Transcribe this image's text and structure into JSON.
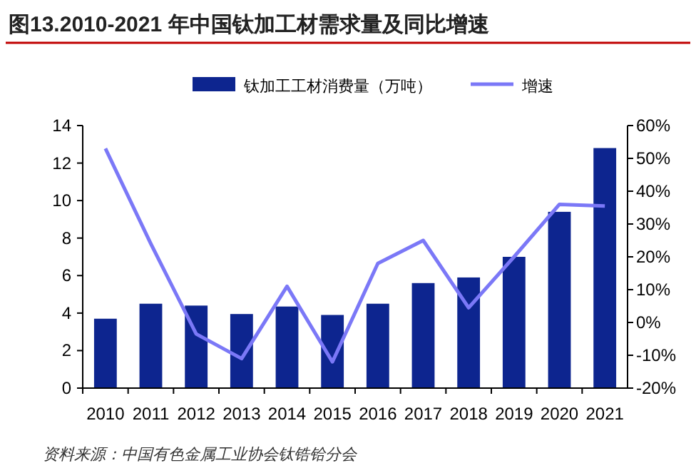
{
  "chart_data": {
    "type": "bar",
    "title": "图13.2010-2021 年中国钛加工材需求量及同比增速",
    "categories": [
      "2010",
      "2011",
      "2012",
      "2013",
      "2014",
      "2015",
      "2016",
      "2017",
      "2018",
      "2019",
      "2020",
      "2021"
    ],
    "series": [
      {
        "name": "钛加工工材消费量（万吨）",
        "color": "#0d258f",
        "values": [
          3.7,
          4.5,
          4.4,
          3.95,
          4.35,
          3.9,
          4.5,
          5.6,
          5.9,
          7.0,
          9.4,
          12.8
        ]
      },
      {
        "name": "增速",
        "type": "line",
        "axis": "y2",
        "color": "#7b78f7",
        "values": [
          53,
          24,
          -3.5,
          -11,
          11,
          -12,
          18,
          25,
          4.5,
          20,
          36,
          35.5
        ]
      }
    ],
    "ylim": [
      0,
      14
    ],
    "yticks": [
      0,
      2,
      4,
      6,
      8,
      10,
      12,
      14
    ],
    "y2lim": [
      -20,
      60
    ],
    "y2ticks": [
      {
        "value": -20,
        "label": "-20%"
      },
      {
        "value": -10,
        "label": "-10%"
      },
      {
        "value": 0,
        "label": "0%"
      },
      {
        "value": 10,
        "label": "10%"
      },
      {
        "value": 20,
        "label": "20%"
      },
      {
        "value": 30,
        "label": "30%"
      },
      {
        "value": 40,
        "label": "40%"
      },
      {
        "value": 50,
        "label": "50%"
      },
      {
        "value": 60,
        "label": "60%"
      }
    ],
    "legend": "top",
    "grid": false,
    "annotations": [
      "资料来源：中国有色金属工业协会钛锆铪分会"
    ]
  }
}
